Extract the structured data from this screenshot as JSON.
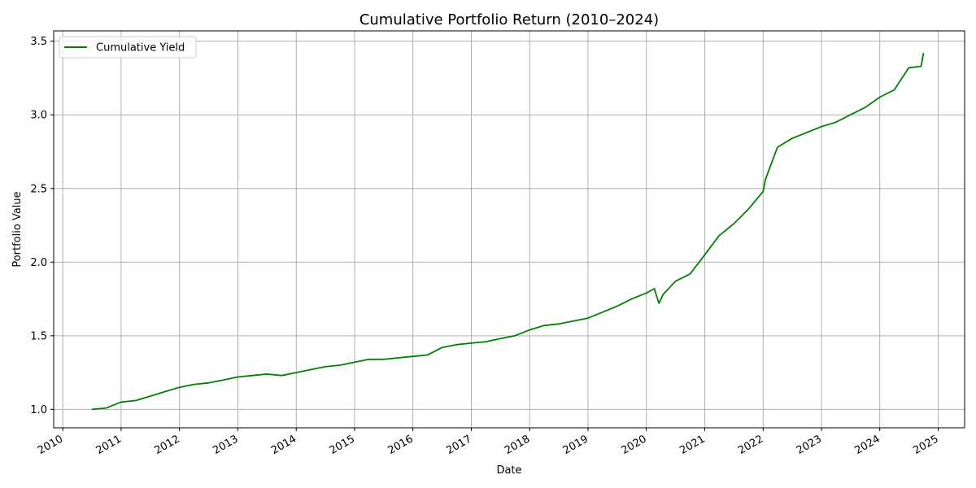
{
  "chart_data": {
    "type": "line",
    "title": "Cumulative Portfolio Return (2010–2024)",
    "xlabel": "Date",
    "ylabel": "Portfolio Value",
    "xlim": [
      "2009-11-05",
      "2025-06-15"
    ],
    "ylim": [
      0.875,
      3.57
    ],
    "x_ticks": [
      "2010-01-01",
      "2011-01-01",
      "2012-01-01",
      "2013-01-01",
      "2014-01-01",
      "2015-01-01",
      "2016-01-01",
      "2017-01-01",
      "2018-01-01",
      "2019-01-01",
      "2020-01-01",
      "2021-01-01",
      "2022-01-01",
      "2023-01-01",
      "2024-01-01",
      "2025-01-01"
    ],
    "x_tick_labels": [
      "2010",
      "2011",
      "2012",
      "2013",
      "2014",
      "2015",
      "2016",
      "2017",
      "2018",
      "2019",
      "2020",
      "2021",
      "2022",
      "2023",
      "2024",
      "2025"
    ],
    "y_ticks": [
      1.0,
      1.5,
      2.0,
      2.5,
      3.0,
      3.5
    ],
    "y_tick_labels": [
      "1.0",
      "1.5",
      "2.0",
      "2.5",
      "3.0",
      "3.5"
    ],
    "grid": true,
    "legend": {
      "position": "upper left",
      "entries": [
        "Cumulative Yield"
      ]
    },
    "line_color": "#008000",
    "series": [
      {
        "name": "Cumulative Yield",
        "x": [
          "2010-07-01",
          "2010-10-01",
          "2011-01-01",
          "2011-04-01",
          "2011-07-01",
          "2011-10-01",
          "2012-01-01",
          "2012-04-01",
          "2012-07-01",
          "2012-10-01",
          "2013-01-01",
          "2013-04-01",
          "2013-07-01",
          "2013-10-01",
          "2014-01-01",
          "2014-04-01",
          "2014-07-01",
          "2014-10-01",
          "2015-01-01",
          "2015-04-01",
          "2015-07-01",
          "2015-10-01",
          "2016-01-01",
          "2016-04-01",
          "2016-07-01",
          "2016-10-01",
          "2017-01-01",
          "2017-04-01",
          "2017-07-01",
          "2017-10-01",
          "2018-01-01",
          "2018-04-01",
          "2018-07-01",
          "2018-10-01",
          "2019-01-01",
          "2019-04-01",
          "2019-07-01",
          "2019-10-01",
          "2020-01-01",
          "2020-02-20",
          "2020-03-20",
          "2020-04-15",
          "2020-07-01",
          "2020-10-01",
          "2021-01-01",
          "2021-04-01",
          "2021-07-01",
          "2021-10-01",
          "2022-01-01",
          "2022-01-15",
          "2022-04-01",
          "2022-07-01",
          "2022-10-01",
          "2023-01-01",
          "2023-04-01",
          "2023-07-01",
          "2023-10-01",
          "2024-01-01",
          "2024-04-01",
          "2024-07-01",
          "2024-09-15",
          "2024-10-01"
        ],
        "values": [
          1.0,
          1.01,
          1.05,
          1.06,
          1.09,
          1.12,
          1.15,
          1.17,
          1.18,
          1.2,
          1.22,
          1.23,
          1.24,
          1.23,
          1.25,
          1.27,
          1.29,
          1.3,
          1.32,
          1.34,
          1.34,
          1.35,
          1.36,
          1.37,
          1.42,
          1.44,
          1.45,
          1.46,
          1.48,
          1.5,
          1.54,
          1.57,
          1.58,
          1.6,
          1.62,
          1.66,
          1.7,
          1.75,
          1.79,
          1.82,
          1.72,
          1.78,
          1.87,
          1.92,
          2.05,
          2.18,
          2.26,
          2.36,
          2.48,
          2.56,
          2.78,
          2.84,
          2.88,
          2.92,
          2.95,
          3.0,
          3.05,
          3.12,
          3.17,
          3.32,
          3.33,
          3.42
        ]
      }
    ]
  }
}
